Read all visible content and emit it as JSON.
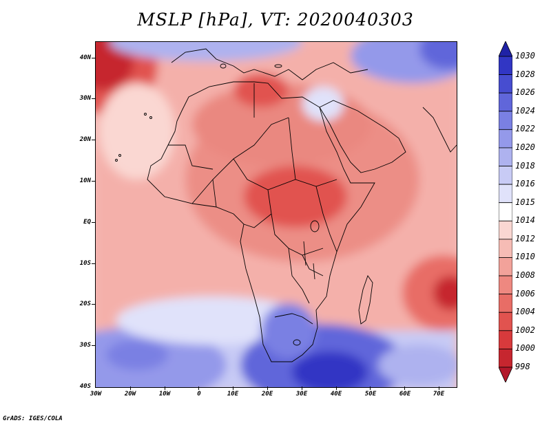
{
  "title": "MSLP [hPa], VT: 2020040303",
  "credit": "GrADS: IGES/COLA",
  "latitude_labels": [
    "40N",
    "30N",
    "20N",
    "10N",
    "EQ",
    "10S",
    "20S",
    "30S",
    "40S"
  ],
  "longitude_labels": [
    "30W",
    "20W",
    "10W",
    "0",
    "10E",
    "20E",
    "30E",
    "40E",
    "50E",
    "60E",
    "70E"
  ],
  "colorbar": {
    "levels": [
      "998",
      "1000",
      "1002",
      "1004",
      "1006",
      "1008",
      "1010",
      "1012",
      "1014",
      "1015",
      "1016",
      "1018",
      "1020",
      "1022",
      "1024",
      "1026",
      "1028",
      "1030"
    ],
    "colors": [
      "#b2182b",
      "#c6262f",
      "#d83a3c",
      "#e1534f",
      "#e86d66",
      "#ee8880",
      "#f2a29a",
      "#f6bcb5",
      "#fad7d2",
      "#ffffff",
      "#e0e2fa",
      "#c8cbf5",
      "#aeb2ef",
      "#9499ea",
      "#7a80e3",
      "#6066da",
      "#474dd0",
      "#3136c4",
      "#1f22a6"
    ]
  },
  "map_extent": {
    "lon_min": -30,
    "lon_max": 75,
    "lat_min": -40,
    "lat_max": 45
  }
}
